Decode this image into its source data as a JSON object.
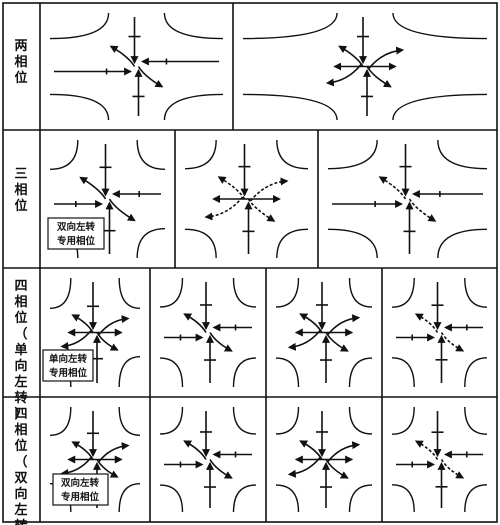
{
  "rows": [
    {
      "label": "两相位",
      "note": null
    },
    {
      "label": "三相位",
      "note": [
        "双向左转",
        "专用相位"
      ]
    },
    {
      "label": "四相位（单向左转）",
      "note": [
        "单向左转",
        "专用相位"
      ]
    },
    {
      "label": "四相位（双向左转）",
      "note": [
        "双向左转",
        "专用相位"
      ]
    }
  ]
}
